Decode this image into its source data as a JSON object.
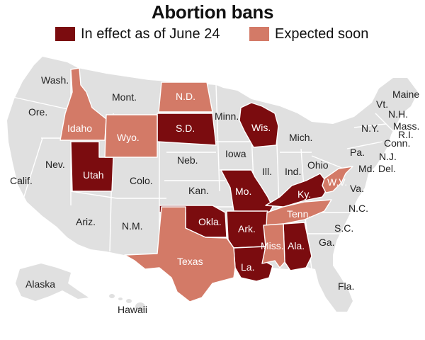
{
  "title": "Abortion bans",
  "colors": {
    "in_effect": "#7b0c0f",
    "expected": "#d37a67",
    "none": "#e0e0e0",
    "border": "#ffffff",
    "label_dark": "#222222",
    "label_light": "#ffffff"
  },
  "legend": [
    {
      "key": "in_effect",
      "label": "In effect as of June 24"
    },
    {
      "key": "expected",
      "label": "Expected soon"
    }
  ],
  "map_labels": {
    "wash": "Wash.",
    "ore": "Ore.",
    "calif": "Calif.",
    "nev": "Nev.",
    "idaho": "Idaho",
    "mont": "Mont.",
    "wyo": "Wyo.",
    "utah": "Utah",
    "colo": "Colo.",
    "ariz": "Ariz.",
    "nm": "N.M.",
    "nd": "N.D.",
    "sd": "S.D.",
    "neb": "Neb.",
    "kan": "Kan.",
    "okla": "Okla.",
    "texas": "Texas",
    "minn": "Minn.",
    "iowa": "Iowa",
    "mo": "Mo.",
    "ark": "Ark.",
    "la": "La.",
    "wis": "Wis.",
    "ill": "Ill.",
    "mich": "Mich.",
    "ind": "Ind.",
    "ohio": "Ohio",
    "ky": "Ky.",
    "tenn": "Tenn.",
    "miss": "Miss.",
    "ala": "Ala.",
    "ga": "Ga.",
    "fla": "Fla.",
    "sc": "S.C.",
    "nc": "N.C.",
    "va": "Va.",
    "wv": "W.V.",
    "pa": "Pa.",
    "ny": "N.Y.",
    "md": "Md.",
    "de": "Del.",
    "nj": "N.J.",
    "conn": "Conn.",
    "ri": "R.I.",
    "mass": "Mass.",
    "vt": "Vt.",
    "nh": "N.H.",
    "maine": "Maine",
    "alaska": "Alaska",
    "hawaii": "Hawaii"
  },
  "in_effect_states": [
    "Utah",
    "S.D.",
    "Wis.",
    "Mo.",
    "Okla.",
    "Ark.",
    "La.",
    "Ky.",
    "Ala."
  ],
  "expected_states": [
    "Idaho",
    "Wyo.",
    "N.D.",
    "Texas",
    "Tenn.",
    "Miss.",
    "W.V."
  ]
}
